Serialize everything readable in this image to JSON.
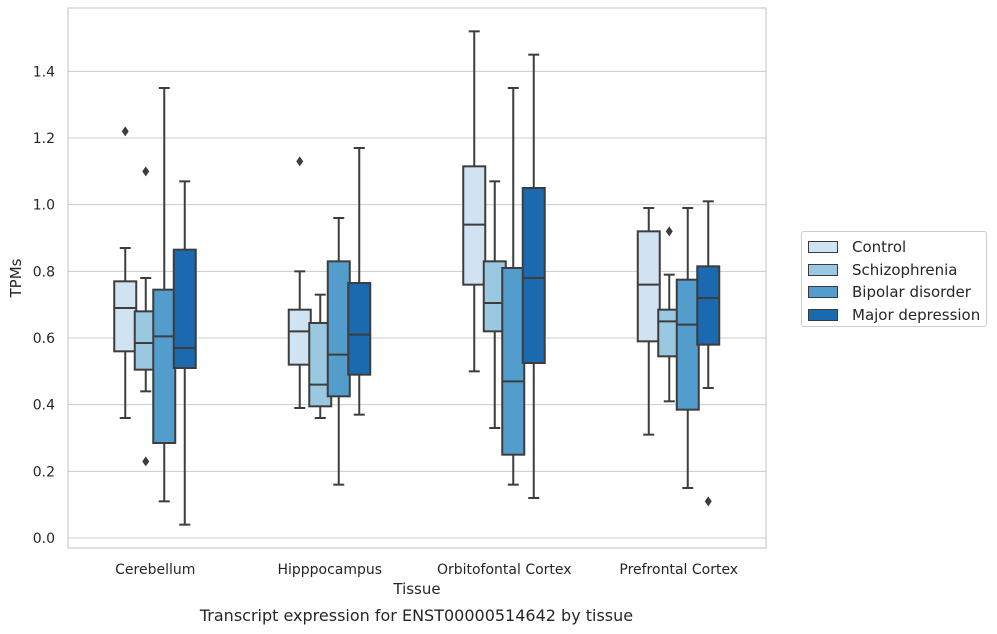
{
  "caption": "Transcript expression for ENST00000514642 by tissue",
  "chart_data": {
    "type": "box",
    "xlabel": "Tissue",
    "ylabel": "TPMs",
    "ylim": [
      -0.03,
      1.59
    ],
    "yticks": [
      "0.0",
      "0.2",
      "0.4",
      "0.6",
      "0.8",
      "1.0",
      "1.2",
      "1.4"
    ],
    "grid": true,
    "legend_position": "right",
    "categories": [
      "Cerebellum",
      "Hipppocampus",
      "Orbitofontal Cortex",
      "Prefrontal Cortex"
    ],
    "series": [
      {
        "name": "Control",
        "color": "#d1e2f3",
        "boxes": [
          {
            "whisker_low": 0.36,
            "q1": 0.56,
            "median": 0.69,
            "q3": 0.77,
            "whisker_high": 0.87,
            "outliers": [
              1.22
            ]
          },
          {
            "whisker_low": 0.39,
            "q1": 0.52,
            "median": 0.62,
            "q3": 0.685,
            "whisker_high": 0.8,
            "outliers": [
              1.13
            ]
          },
          {
            "whisker_low": 0.5,
            "q1": 0.76,
            "median": 0.94,
            "q3": 1.115,
            "whisker_high": 1.52,
            "outliers": []
          },
          {
            "whisker_low": 0.31,
            "q1": 0.59,
            "median": 0.76,
            "q3": 0.92,
            "whisker_high": 0.99,
            "outliers": []
          }
        ]
      },
      {
        "name": "Schizophrenia",
        "color": "#9ac8e0",
        "boxes": [
          {
            "whisker_low": 0.44,
            "q1": 0.505,
            "median": 0.585,
            "q3": 0.68,
            "whisker_high": 0.78,
            "outliers": [
              1.1,
              0.23
            ]
          },
          {
            "whisker_low": 0.36,
            "q1": 0.395,
            "median": 0.46,
            "q3": 0.645,
            "whisker_high": 0.73,
            "outliers": []
          },
          {
            "whisker_low": 0.33,
            "q1": 0.62,
            "median": 0.705,
            "q3": 0.83,
            "whisker_high": 1.07,
            "outliers": []
          },
          {
            "whisker_low": 0.41,
            "q1": 0.545,
            "median": 0.65,
            "q3": 0.685,
            "whisker_high": 0.79,
            "outliers": [
              0.92
            ]
          }
        ]
      },
      {
        "name": "Bipolar disorder",
        "color": "#529dcc",
        "boxes": [
          {
            "whisker_low": 0.11,
            "q1": 0.285,
            "median": 0.605,
            "q3": 0.745,
            "whisker_high": 1.35,
            "outliers": []
          },
          {
            "whisker_low": 0.16,
            "q1": 0.425,
            "median": 0.55,
            "q3": 0.83,
            "whisker_high": 0.96,
            "outliers": []
          },
          {
            "whisker_low": 0.16,
            "q1": 0.25,
            "median": 0.47,
            "q3": 0.81,
            "whisker_high": 1.35,
            "outliers": []
          },
          {
            "whisker_low": 0.15,
            "q1": 0.385,
            "median": 0.64,
            "q3": 0.775,
            "whisker_high": 0.99,
            "outliers": []
          }
        ]
      },
      {
        "name": "Major depression",
        "color": "#1b69af",
        "boxes": [
          {
            "whisker_low": 0.04,
            "q1": 0.51,
            "median": 0.57,
            "q3": 0.865,
            "whisker_high": 1.07,
            "outliers": []
          },
          {
            "whisker_low": 0.37,
            "q1": 0.49,
            "median": 0.61,
            "q3": 0.765,
            "whisker_high": 1.17,
            "outliers": []
          },
          {
            "whisker_low": 0.12,
            "q1": 0.525,
            "median": 0.78,
            "q3": 1.05,
            "whisker_high": 1.45,
            "outliers": []
          },
          {
            "whisker_low": 0.45,
            "q1": 0.58,
            "median": 0.72,
            "q3": 0.815,
            "whisker_high": 1.01,
            "outliers": [
              0.11
            ]
          }
        ]
      }
    ]
  }
}
